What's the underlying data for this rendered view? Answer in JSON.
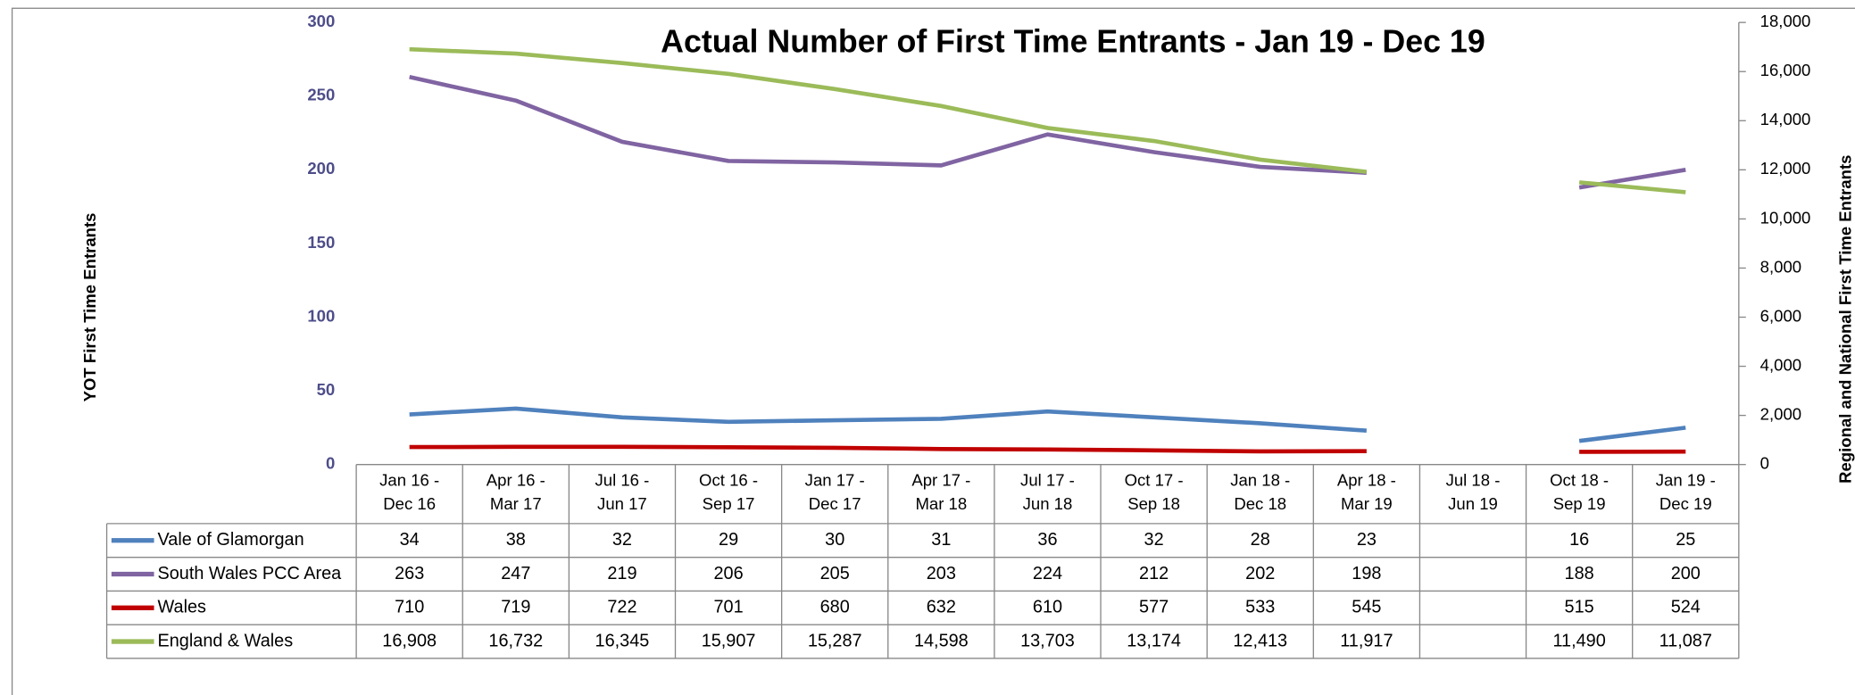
{
  "chart_data": {
    "type": "line",
    "title": "Actual Number of First Time Entrants - Jan 19 - Dec 19",
    "y_label": "YOT First Time Entrants",
    "y2_label": "Regional and National First Time Entrants",
    "categories": [
      "Jan 16 - Dec 16",
      "Apr 16 - Mar 17",
      "Jul 16 - Jun 17",
      "Oct 16 - Sep 17",
      "Jan 17 - Dec 17",
      "Apr 17 - Mar 18",
      "Jul 17 - Jun 18",
      "Oct 17 - Sep 18",
      "Jan 18 - Dec 18",
      "Apr 18 - Mar 19",
      "Jul 18 - Jun 19",
      "Oct 18 - Sep 19",
      "Jan 19 - Dec 19"
    ],
    "series": [
      {
        "name": "Vale of Glamorgan",
        "color": "#4f81bd",
        "values": [
          34,
          38,
          32,
          29,
          30,
          31,
          36,
          32,
          28,
          23,
          null,
          16,
          25
        ]
      },
      {
        "name": "South Wales PCC Area",
        "color": "#8064a2",
        "values": [
          263,
          247,
          219,
          206,
          205,
          203,
          224,
          212,
          202,
          198,
          null,
          188,
          200
        ]
      },
      {
        "name": "Wales",
        "color": "#c00000",
        "axis": "y2",
        "values": [
          710,
          719,
          722,
          701,
          680,
          632,
          610,
          577,
          533,
          545,
          null,
          515,
          524
        ]
      },
      {
        "name": "England & Wales",
        "color": "#9bbb59",
        "axis": "y2",
        "values": [
          16908,
          16732,
          16345,
          15907,
          15287,
          14598,
          13703,
          13174,
          12413,
          11917,
          null,
          11490,
          11087
        ],
        "value_labels": [
          "16,908",
          "16,732",
          "16,345",
          "15,907",
          "15,287",
          "14,598",
          "13,703",
          "13,174",
          "12,413",
          "11,917",
          null,
          "11,490",
          "11,087"
        ]
      }
    ],
    "ylim": [
      0,
      300
    ],
    "yticks": [
      0,
      50,
      100,
      150,
      200,
      250,
      300
    ],
    "y2lim": [
      0,
      18000
    ],
    "y2ticks": [
      0,
      {
        "value": 2000,
        "label": "2,000"
      },
      {
        "value": 4000,
        "label": "4,000"
      },
      {
        "value": 6000,
        "label": "6,000"
      },
      {
        "value": 8000,
        "label": "8,000"
      },
      {
        "value": 10000,
        "label": "10,000"
      },
      {
        "value": 12000,
        "label": "12,000"
      },
      {
        "value": 14000,
        "label": "14,000"
      },
      {
        "value": 16000,
        "label": "16,000"
      },
      {
        "value": 18000,
        "label": "18,000"
      }
    ],
    "grid": false,
    "data_table": true
  }
}
